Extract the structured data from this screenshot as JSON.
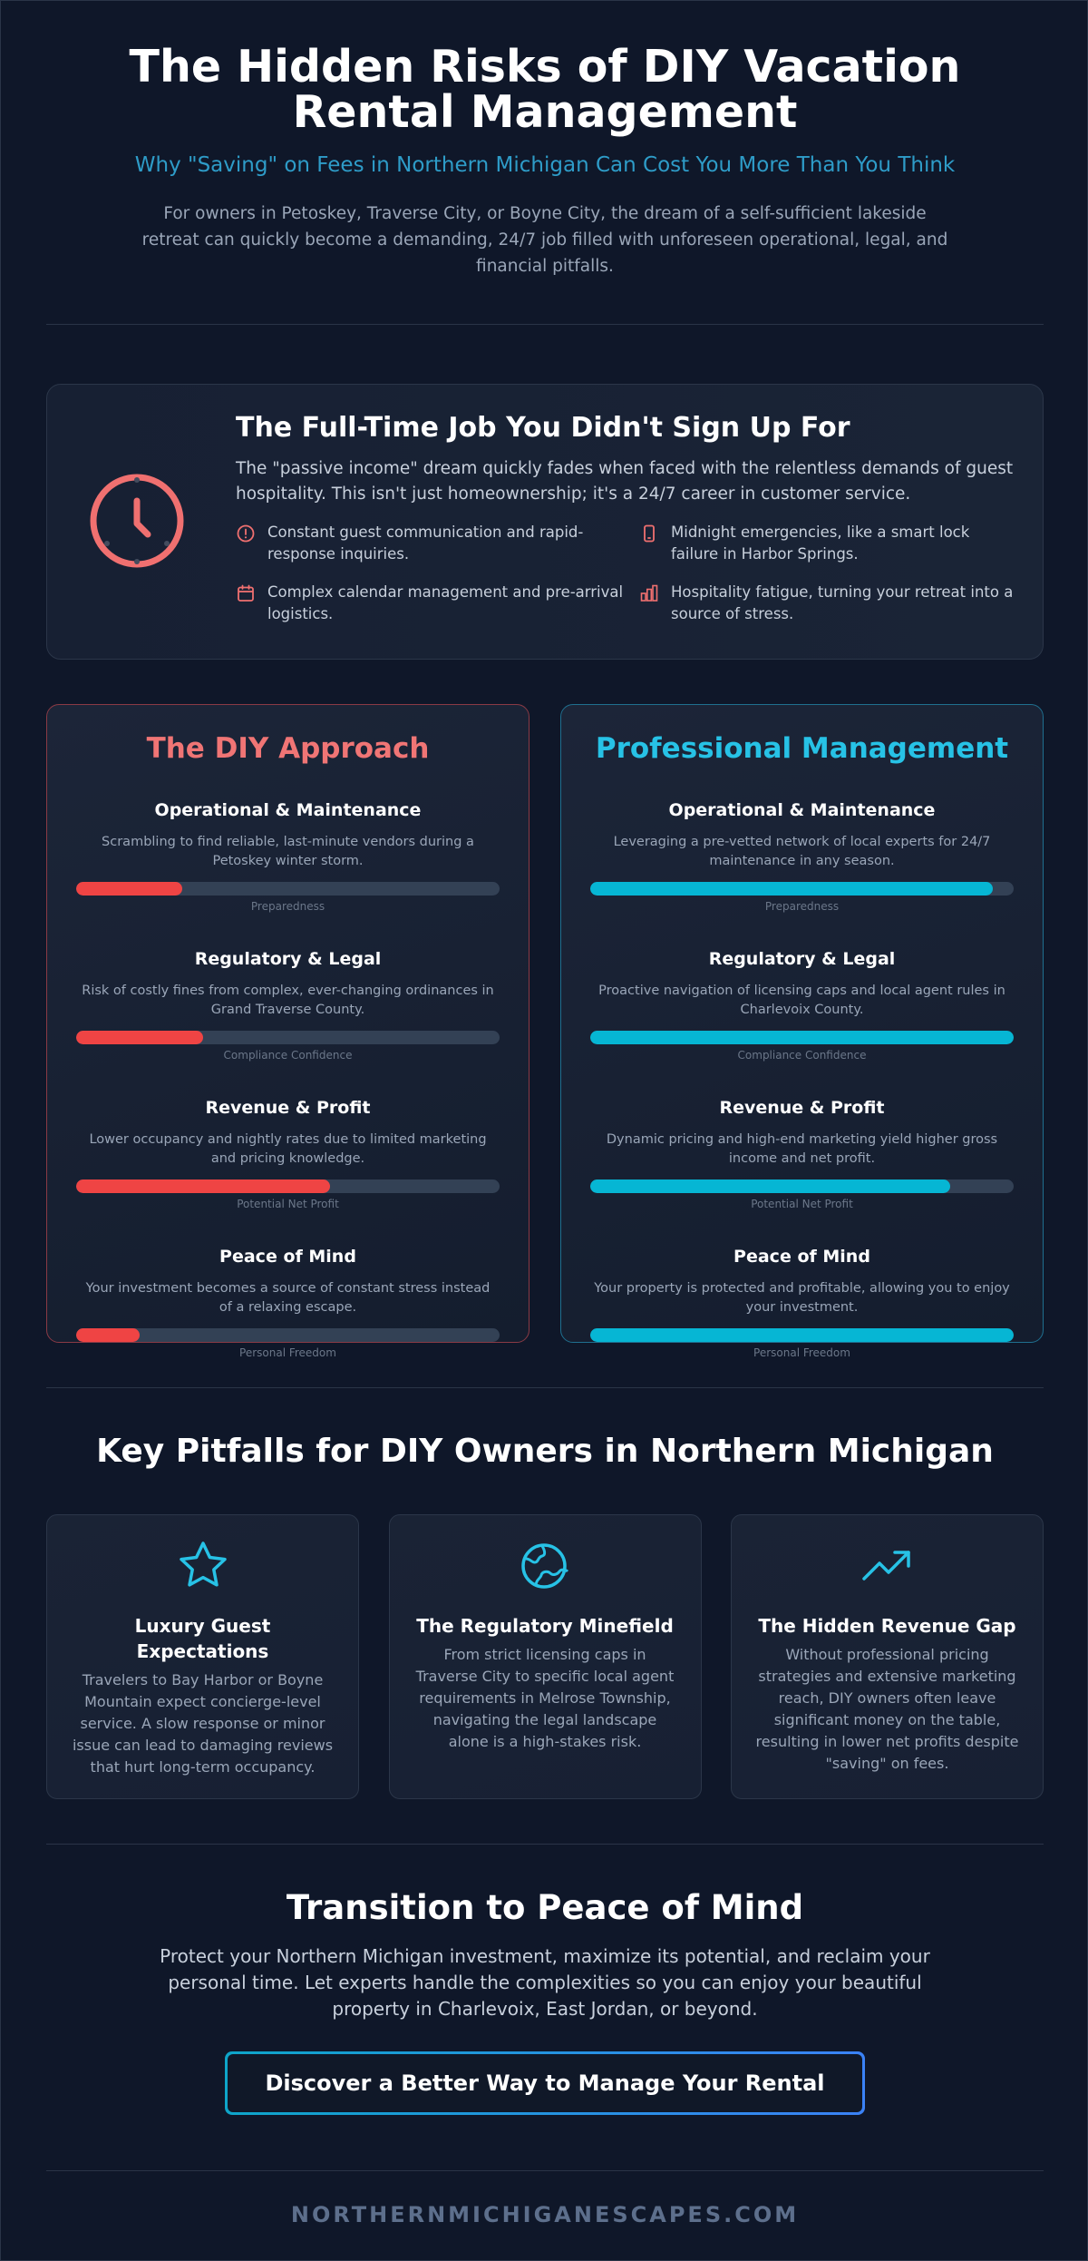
{
  "hero": {
    "title": "The Hidden Risks of DIY Vacation Rental Management",
    "subtitle": "Why \"Saving\" on Fees in Northern Michigan Can Cost You More Than You Think",
    "intro": "For owners in Petoskey, Traverse City, or Boyne City, the dream of a self-sufficient lakeside retreat can quickly become a demanding, 24/7 job filled with unforeseen operational, legal, and financial pitfalls."
  },
  "job": {
    "icon": "clock-icon",
    "title": "The Full-Time Job You Didn't Sign Up For",
    "description": "The \"passive income\" dream quickly fades when faced with the relentless demands of guest hospitality. This isn't just homeownership; it's a 24/7 career in customer service.",
    "items": [
      {
        "icon": "alert-circle-icon",
        "text": "Constant guest communication and rapid-response inquiries."
      },
      {
        "icon": "phone-icon",
        "text": "Midnight emergencies, like a smart lock failure in Harbor Springs."
      },
      {
        "icon": "calendar-icon",
        "text": "Complex calendar management and pre-arrival logistics."
      },
      {
        "icon": "bar-chart-icon",
        "text": "Hospitality fatigue, turning your retreat into a source of stress."
      }
    ]
  },
  "compare": {
    "diy": {
      "title": "The DIY Approach",
      "metrics": [
        {
          "title": "Operational & Maintenance",
          "desc": "Scrambling to find reliable, last-minute vendors during a Petoskey winter storm.",
          "caption": "Preparedness",
          "level": 25
        },
        {
          "title": "Regulatory & Legal",
          "desc": "Risk of costly fines from complex, ever-changing ordinances in Grand Traverse County.",
          "caption": "Compliance Confidence",
          "level": 30
        },
        {
          "title": "Revenue & Profit",
          "desc": "Lower occupancy and nightly rates due to limited marketing and pricing knowledge.",
          "caption": "Potential Net Profit",
          "level": 60
        },
        {
          "title": "Peace of Mind",
          "desc": "Your investment becomes a source of constant stress instead of a relaxing escape.",
          "caption": "Personal Freedom",
          "level": 15
        }
      ]
    },
    "pro": {
      "title": "Professional Management",
      "metrics": [
        {
          "title": "Operational & Maintenance",
          "desc": "Leveraging a pre-vetted network of local experts for 24/7 maintenance in any season.",
          "caption": "Preparedness",
          "level": 95
        },
        {
          "title": "Regulatory & Legal",
          "desc": "Proactive navigation of licensing caps and local agent rules in Charlevoix County.",
          "caption": "Compliance Confidence",
          "level": 100
        },
        {
          "title": "Revenue & Profit",
          "desc": "Dynamic pricing and high-end marketing yield higher gross income and net profit.",
          "caption": "Potential Net Profit",
          "level": 85
        },
        {
          "title": "Peace of Mind",
          "desc": "Your property is protected and profitable, allowing you to enjoy your investment.",
          "caption": "Personal Freedom",
          "level": 100
        }
      ]
    }
  },
  "pitfalls": {
    "title": "Key Pitfalls for DIY Owners in Northern Michigan",
    "cards": [
      {
        "icon": "star-icon",
        "title": "Luxury Guest Expectations",
        "text": "Travelers to Bay Harbor or Boyne Mountain expect concierge-level service. A slow response or minor issue can lead to damaging reviews that hurt long-term occupancy."
      },
      {
        "icon": "globe-icon",
        "title": "The Regulatory Minefield",
        "text": "From strict licensing caps in Traverse City to specific local agent requirements in Melrose Township, navigating the legal landscape alone is a high-stakes risk."
      },
      {
        "icon": "trending-up-icon",
        "title": "The Hidden Revenue Gap",
        "text": "Without professional pricing strategies and extensive marketing reach, DIY owners often leave significant money on the table, resulting in lower net profits despite \"saving\" on fees."
      }
    ]
  },
  "transition": {
    "title": "Transition to Peace of Mind",
    "text": "Protect your Northern Michigan investment, maximize its potential, and reclaim your personal time. Let experts handle the complexities so you can enjoy your beautiful property in Charlevoix, East Jordan, or beyond.",
    "cta": "Discover a Better Way to Manage Your Rental"
  },
  "footer": {
    "site": "NORTHERNMICHIGANESCAPES.COM"
  },
  "colors": {
    "background": "#0f1729",
    "diy_accent": "#ef4444",
    "pro_accent": "#06b6d4",
    "subtitle": "#2e9cc8"
  }
}
